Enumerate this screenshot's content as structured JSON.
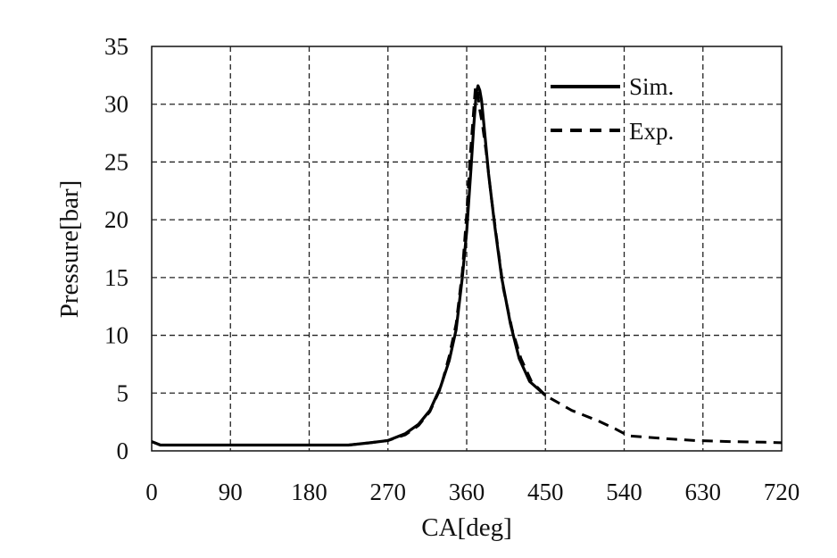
{
  "chart_data": {
    "type": "line",
    "title": "",
    "xlabel": "CA[deg]",
    "ylabel": "Pressure[bar]",
    "xlim": [
      0,
      720
    ],
    "ylim": [
      0,
      35
    ],
    "xticks": [
      0,
      90,
      180,
      270,
      360,
      450,
      540,
      630,
      720
    ],
    "yticks": [
      0,
      5,
      10,
      15,
      20,
      25,
      30,
      35
    ],
    "grid": true,
    "legend_position": "top-right",
    "series": [
      {
        "name": "Sim.",
        "style": "solid",
        "color": "#000000",
        "x": [
          0,
          10,
          90,
          180,
          225,
          250,
          270,
          290,
          305,
          318,
          330,
          340,
          348,
          355,
          360,
          365,
          368,
          371,
          373,
          375,
          377,
          380,
          385,
          392,
          400,
          410,
          420,
          432,
          450
        ],
        "y": [
          0.8,
          0.5,
          0.5,
          0.5,
          0.5,
          0.7,
          0.9,
          1.5,
          2.3,
          3.5,
          5.5,
          7.8,
          10.5,
          15,
          19,
          24.5,
          28,
          31,
          31.6,
          31.2,
          30.3,
          28,
          24,
          19.5,
          15,
          11,
          8,
          6,
          4.8
        ]
      },
      {
        "name": "Exp.",
        "style": "dashed",
        "color": "#000000",
        "x": [
          0,
          10,
          90,
          180,
          225,
          250,
          270,
          290,
          305,
          318,
          330,
          340,
          348,
          355,
          360,
          364,
          367,
          370,
          372,
          375,
          378,
          382,
          388,
          395,
          402,
          412,
          422,
          434,
          450,
          480,
          510,
          530,
          545,
          580,
          620,
          660,
          700,
          720
        ],
        "y": [
          0.8,
          0.5,
          0.5,
          0.5,
          0.5,
          0.7,
          0.9,
          1.4,
          2.2,
          3.4,
          5.4,
          8.2,
          11,
          15.5,
          20.5,
          25.5,
          28.5,
          31.5,
          31.3,
          29.5,
          28.2,
          26,
          22,
          18,
          14,
          10.5,
          8,
          6,
          4.8,
          3.5,
          2.6,
          1.9,
          1.3,
          1.1,
          0.9,
          0.8,
          0.75,
          0.7
        ]
      }
    ]
  }
}
